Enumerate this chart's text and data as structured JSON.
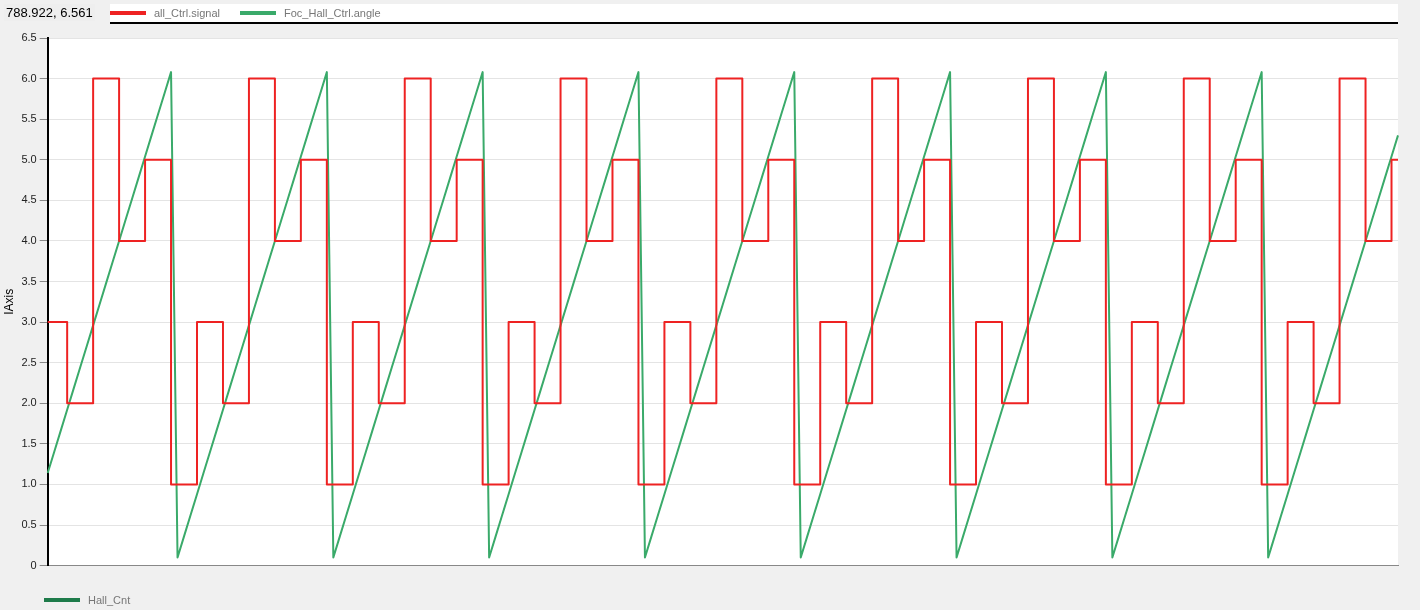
{
  "chart_data": {
    "type": "line",
    "ylabel": "IAxis",
    "legend": "top left",
    "marker": "none",
    "grid": "y",
    "annotations": [
      "788.922, 6.561",
      "Hall_Cnt"
    ],
    "ylim": [
      0,
      6.5
    ],
    "yticks": [
      0,
      0.5,
      {
        "value": 1,
        "label": "1.0"
      },
      1.5,
      {
        "value": 2,
        "label": "2.0"
      },
      2.5,
      {
        "value": 3,
        "label": "3.0"
      },
      3.5,
      {
        "value": 4,
        "label": "4.0"
      },
      4.5,
      {
        "value": 5,
        "label": "5.0"
      },
      5.5,
      {
        "value": 6,
        "label": "6.0"
      },
      6.5
    ],
    "categories": [
      null,
      null,
      null,
      null,
      null,
      null,
      null,
      null,
      null,
      null,
      null,
      null,
      null,
      null,
      null,
      null,
      null,
      null,
      null,
      null,
      null,
      null,
      null,
      null,
      null,
      null,
      null,
      null,
      null,
      null,
      null,
      null,
      null,
      null,
      null,
      null,
      null,
      null,
      null,
      null,
      null,
      null,
      null,
      null,
      null,
      null,
      null,
      null,
      null,
      null,
      null,
      null,
      null,
      null,
      null,
      null,
      null,
      null,
      null,
      null,
      null,
      null,
      null,
      null,
      null,
      null,
      null,
      null,
      null,
      null,
      null,
      null,
      null,
      null,
      null,
      null,
      null,
      null,
      null,
      null,
      null,
      null,
      null,
      null,
      null,
      null,
      null,
      null,
      null,
      null,
      null,
      null,
      null,
      null,
      null,
      null,
      null,
      null,
      null,
      null,
      null,
      null,
      null,
      null,
      null,
      null,
      null,
      null,
      null,
      null,
      null,
      null,
      null,
      null,
      null,
      null,
      null,
      null,
      null,
      null,
      null,
      null,
      null,
      null,
      null,
      null,
      null,
      null,
      null,
      null,
      null,
      null,
      null,
      null,
      null,
      null,
      null,
      null,
      null,
      null,
      null,
      null,
      null,
      null,
      null,
      null,
      null,
      null,
      null,
      null,
      null,
      null,
      null,
      null,
      null,
      null,
      null,
      null,
      null,
      null,
      null,
      null,
      null,
      null,
      null,
      null,
      null,
      null,
      null,
      null,
      null,
      null,
      null,
      null,
      null,
      null,
      null,
      null,
      null,
      null,
      null,
      null,
      null,
      null,
      null,
      null,
      null,
      null,
      null,
      null,
      null,
      null,
      null,
      null,
      null,
      null,
      null,
      null,
      null,
      null,
      null,
      null,
      null,
      null,
      null,
      null,
      null,
      null,
      null
    ],
    "series": [
      {
        "name": "all_Ctrl.signal",
        "type": "step",
        "color": "#ee2222",
        "values": [
          3,
          3,
          3,
          3,
          2,
          2,
          2,
          2,
          6,
          6,
          6,
          6,
          4,
          4,
          4,
          4,
          5,
          5,
          5,
          5,
          1,
          1,
          1,
          1,
          3,
          3,
          3,
          3,
          2,
          2,
          2,
          2,
          6,
          6,
          6,
          6,
          4,
          4,
          4,
          4,
          5,
          5,
          5,
          5,
          1,
          1,
          1,
          1,
          3,
          3,
          3,
          3,
          2,
          2,
          2,
          2,
          6,
          6,
          6,
          6,
          4,
          4,
          4,
          4,
          5,
          5,
          5,
          5,
          1,
          1,
          1,
          1,
          3,
          3,
          3,
          3,
          2,
          2,
          2,
          2,
          6,
          6,
          6,
          6,
          4,
          4,
          4,
          4,
          5,
          5,
          5,
          5,
          1,
          1,
          1,
          1,
          3,
          3,
          3,
          3,
          2,
          2,
          2,
          2,
          6,
          6,
          6,
          6,
          4,
          4,
          4,
          4,
          5,
          5,
          5,
          5,
          1,
          1,
          1,
          1,
          3,
          3,
          3,
          3,
          2,
          2,
          2,
          2,
          6,
          6,
          6,
          6,
          4,
          4,
          4,
          4,
          5,
          5,
          5,
          5,
          1,
          1,
          1,
          1,
          3,
          3,
          3,
          3,
          2,
          2,
          2,
          2,
          6,
          6,
          6,
          6,
          4,
          4,
          4,
          4,
          5,
          5,
          5,
          5,
          1,
          1,
          1,
          1,
          3,
          3,
          3,
          3,
          2,
          2,
          2,
          2,
          6,
          6,
          6,
          6,
          4,
          4,
          4,
          4,
          5,
          5,
          5,
          5,
          1,
          1,
          1,
          1,
          3,
          3,
          3,
          3,
          2,
          2,
          2,
          2,
          6,
          6,
          6,
          6,
          4,
          4,
          4,
          4,
          5
        ]
      },
      {
        "name": "Foc_Hall_Ctrl.angle",
        "type": "line",
        "color": "#3aaa6a",
        "values": [
          1.14,
          1.4,
          1.66,
          1.92,
          2.18,
          2.44,
          2.7,
          2.96,
          3.22,
          3.48,
          3.74,
          4,
          4.26,
          4.52,
          4.78,
          5.04,
          5.3,
          5.56,
          5.82,
          6.08,
          0.1,
          0.36,
          0.62,
          0.88,
          1.14,
          1.4,
          1.66,
          1.92,
          2.18,
          2.44,
          2.7,
          2.96,
          3.22,
          3.48,
          3.74,
          4,
          4.26,
          4.52,
          4.78,
          5.04,
          5.3,
          5.56,
          5.82,
          6.08,
          0.1,
          0.36,
          0.62,
          0.88,
          1.14,
          1.4,
          1.66,
          1.92,
          2.18,
          2.44,
          2.7,
          2.96,
          3.22,
          3.48,
          3.74,
          4,
          4.26,
          4.52,
          4.78,
          5.04,
          5.3,
          5.56,
          5.82,
          6.08,
          0.1,
          0.36,
          0.62,
          0.88,
          1.14,
          1.4,
          1.66,
          1.92,
          2.18,
          2.44,
          2.7,
          2.96,
          3.22,
          3.48,
          3.74,
          4,
          4.26,
          4.52,
          4.78,
          5.04,
          5.3,
          5.56,
          5.82,
          6.08,
          0.1,
          0.36,
          0.62,
          0.88,
          1.14,
          1.4,
          1.66,
          1.92,
          2.18,
          2.44,
          2.7,
          2.96,
          3.22,
          3.48,
          3.74,
          4,
          4.26,
          4.52,
          4.78,
          5.04,
          5.3,
          5.56,
          5.82,
          6.08,
          0.1,
          0.36,
          0.62,
          0.88,
          1.14,
          1.4,
          1.66,
          1.92,
          2.18,
          2.44,
          2.7,
          2.96,
          3.22,
          3.48,
          3.74,
          4,
          4.26,
          4.52,
          4.78,
          5.04,
          5.3,
          5.56,
          5.82,
          6.08,
          0.1,
          0.36,
          0.62,
          0.88,
          1.14,
          1.4,
          1.66,
          1.92,
          2.18,
          2.44,
          2.7,
          2.96,
          3.22,
          3.48,
          3.74,
          4,
          4.26,
          4.52,
          4.78,
          5.04,
          5.3,
          5.56,
          5.82,
          6.08,
          0.1,
          0.36,
          0.62,
          0.88,
          1.14,
          1.4,
          1.66,
          1.92,
          2.18,
          2.44,
          2.7,
          2.96,
          3.22,
          3.48,
          3.74,
          4,
          4.26,
          4.52,
          4.78,
          5.04,
          5.3,
          5.56,
          5.82,
          6.08,
          0.1,
          0.36,
          0.62,
          0.88,
          1.14,
          1.4,
          1.66,
          1.92,
          2.18,
          2.44,
          2.7,
          2.96,
          3.22,
          3.48,
          3.74,
          4,
          4.26,
          4.52,
          4.78,
          5.04,
          5.3
        ]
      }
    ]
  }
}
